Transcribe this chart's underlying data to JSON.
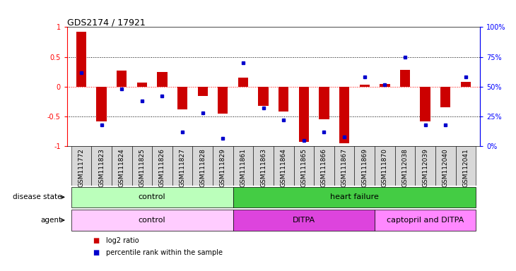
{
  "title": "GDS2174 / 17921",
  "samples": [
    "GSM111772",
    "GSM111823",
    "GSM111824",
    "GSM111825",
    "GSM111826",
    "GSM111827",
    "GSM111828",
    "GSM111829",
    "GSM111861",
    "GSM111863",
    "GSM111864",
    "GSM111865",
    "GSM111866",
    "GSM111867",
    "GSM111869",
    "GSM111870",
    "GSM112038",
    "GSM112039",
    "GSM112040",
    "GSM112041"
  ],
  "log2_ratio": [
    0.92,
    -0.58,
    0.27,
    0.07,
    0.25,
    -0.38,
    -0.15,
    -0.45,
    0.15,
    -0.32,
    -0.42,
    -0.93,
    -0.55,
    -0.95,
    0.03,
    0.05,
    0.28,
    -0.58,
    -0.35,
    0.08
  ],
  "percentile_rank": [
    0.62,
    0.18,
    0.48,
    0.38,
    0.42,
    0.12,
    0.28,
    0.07,
    0.7,
    0.32,
    0.22,
    0.05,
    0.12,
    0.08,
    0.58,
    0.52,
    0.75,
    0.18,
    0.18,
    0.58
  ],
  "bar_color": "#cc0000",
  "dot_color": "#0000cc",
  "bar_width": 0.5,
  "disease_state_groups": [
    {
      "label": "control",
      "start": 0,
      "end": 8,
      "color": "#bbffbb"
    },
    {
      "label": "heart failure",
      "start": 8,
      "end": 20,
      "color": "#44cc44"
    }
  ],
  "agent_groups": [
    {
      "label": "control",
      "start": 0,
      "end": 8,
      "color": "#ffccff"
    },
    {
      "label": "DITPA",
      "start": 8,
      "end": 15,
      "color": "#dd44dd"
    },
    {
      "label": "captopril and DITPA",
      "start": 15,
      "end": 20,
      "color": "#ff88ff"
    }
  ],
  "tick_label_fontsize": 6.5,
  "row_label_fontsize": 7.5,
  "group_label_fontsize": 8
}
